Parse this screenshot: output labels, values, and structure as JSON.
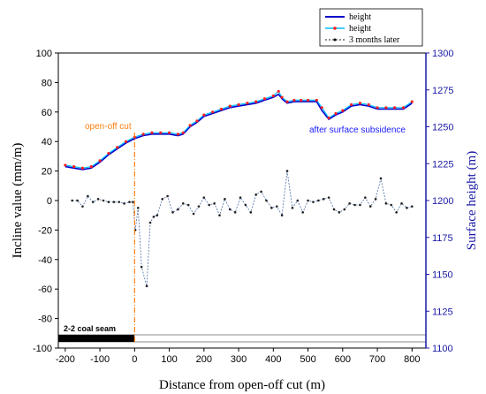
{
  "chart_data": {
    "type": "line",
    "xlabel": "Distance from open-off cut (m)",
    "ylabel_left": "Incline value (mm/m)",
    "ylabel_right": "Surface height (m)",
    "xlim": [
      -220,
      840
    ],
    "ylim_left": [
      -100,
      100
    ],
    "ylim_right": [
      1100,
      1300
    ],
    "x_ticks": [
      -200,
      -100,
      0,
      100,
      200,
      300,
      400,
      500,
      600,
      700,
      800
    ],
    "y_left_ticks": [
      -100,
      -80,
      -60,
      -40,
      -20,
      0,
      20,
      40,
      60,
      80,
      100
    ],
    "y_right_ticks": [
      1100,
      1125,
      1150,
      1175,
      1200,
      1225,
      1250,
      1275,
      1300
    ],
    "legend": {
      "position": "top-right",
      "entries": [
        "height",
        "height",
        "3 months later"
      ]
    },
    "colors": {
      "height_before": "#0000cc",
      "height_after_line": "#00bfff",
      "height_after_marker": "#ff2020",
      "incline": "#222222",
      "incline_dash": "#4a6fa5",
      "open_off_line": "#ff7f0e",
      "right_axis": "#1a1aa6"
    },
    "annotations": {
      "open_off_cut": "open-off cut",
      "after_subsidence": "after surface subsidence",
      "coal_seam": "2-2 coal seam"
    },
    "open_off_x": 0,
    "series": [
      {
        "name": "height",
        "axis": "right",
        "x": [
          -200,
          -175,
          -150,
          -125,
          -100,
          -75,
          -50,
          -25,
          0,
          25,
          50,
          75,
          100,
          125,
          140,
          160,
          180,
          200,
          225,
          250,
          275,
          300,
          325,
          350,
          375,
          400,
          415,
          425,
          440,
          460,
          480,
          500,
          525,
          540,
          560,
          580,
          600,
          625,
          650,
          675,
          700,
          725,
          750,
          775,
          800
        ],
        "y": [
          1223,
          1222,
          1221,
          1222,
          1226,
          1231,
          1235,
          1239,
          1242,
          1244,
          1245,
          1245,
          1245,
          1244,
          1245,
          1250,
          1253,
          1257,
          1259,
          1261,
          1263,
          1264,
          1265,
          1266,
          1268,
          1270,
          1272,
          1269,
          1266,
          1267,
          1267,
          1267,
          1267,
          1261,
          1255,
          1258,
          1260,
          1264,
          1265,
          1264,
          1262,
          1262,
          1262,
          1262,
          1266
        ]
      },
      {
        "name": "height",
        "axis": "right",
        "x": [
          -200,
          -175,
          -150,
          -125,
          -100,
          -75,
          -50,
          -25,
          0,
          25,
          50,
          75,
          100,
          125,
          140,
          160,
          180,
          200,
          225,
          250,
          275,
          300,
          325,
          350,
          375,
          400,
          415,
          425,
          440,
          460,
          480,
          500,
          525,
          540,
          560,
          580,
          600,
          625,
          650,
          675,
          700,
          725,
          750,
          775,
          800
        ],
        "y": [
          1224,
          1223,
          1222,
          1223,
          1227,
          1232,
          1236,
          1240,
          1243,
          1245,
          1246,
          1246,
          1246,
          1245,
          1246,
          1251,
          1254,
          1258,
          1260,
          1262,
          1264,
          1265,
          1266,
          1267,
          1269,
          1271,
          1274,
          1270,
          1267,
          1268,
          1268,
          1268,
          1268,
          1263,
          1256,
          1259,
          1261,
          1265,
          1266,
          1265,
          1263,
          1263,
          1263,
          1263,
          1267
        ]
      },
      {
        "name": "3 months later",
        "axis": "left",
        "x": [
          -180,
          -165,
          -150,
          -135,
          -120,
          -105,
          -90,
          -75,
          -60,
          -45,
          -30,
          -15,
          -5,
          2,
          10,
          20,
          35,
          45,
          55,
          65,
          80,
          95,
          110,
          125,
          140,
          155,
          170,
          185,
          200,
          215,
          230,
          245,
          260,
          275,
          290,
          305,
          320,
          335,
          350,
          365,
          380,
          395,
          410,
          425,
          440,
          455,
          470,
          485,
          500,
          515,
          530,
          545,
          560,
          575,
          590,
          605,
          620,
          635,
          650,
          665,
          680,
          695,
          710,
          725,
          740,
          755,
          770,
          785,
          800
        ],
        "y": [
          0,
          0,
          -4,
          3,
          -1,
          1,
          0,
          -1,
          -1,
          -1,
          -2,
          -1,
          -1,
          -20,
          -5,
          -45,
          -58,
          -15,
          -11,
          -10,
          1,
          3,
          -8,
          -6,
          -2,
          -3,
          -9,
          -4,
          2,
          -3,
          -2,
          -10,
          1,
          -6,
          -8,
          2,
          -3,
          -8,
          4,
          6,
          0,
          -5,
          -4,
          -10,
          20,
          -5,
          0,
          -8,
          0,
          -1,
          0,
          1,
          2,
          -6,
          -8,
          -6,
          -2,
          -3,
          -3,
          2,
          -4,
          1,
          15,
          -2,
          -3,
          -8,
          -2,
          -5,
          -4
        ]
      }
    ]
  }
}
